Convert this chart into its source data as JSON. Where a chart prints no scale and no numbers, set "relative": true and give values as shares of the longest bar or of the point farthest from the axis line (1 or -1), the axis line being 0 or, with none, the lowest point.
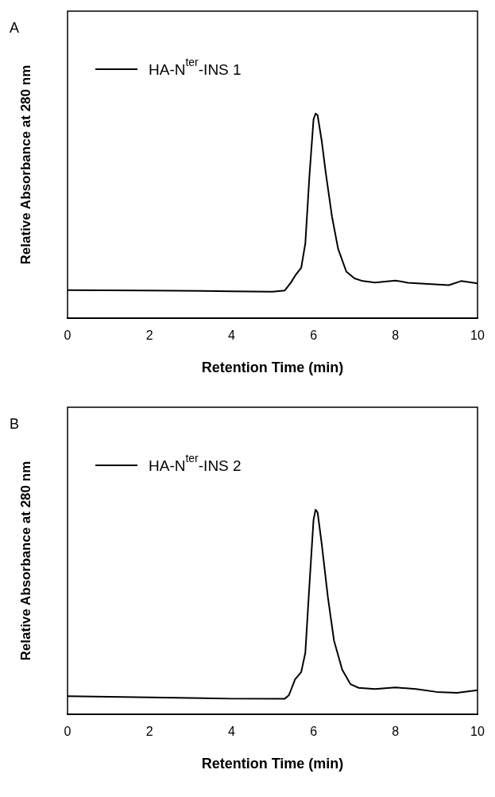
{
  "chart_data": [
    {
      "type": "line",
      "title": "A",
      "xlabel": "Retention Time (min)",
      "ylabel": "Relative Absorbance at 280 nm",
      "relative": true,
      "grid": false,
      "legend": "top left",
      "xlim": [
        0,
        10
      ],
      "xticks": [
        0,
        2,
        4,
        6,
        8,
        10
      ],
      "x": [
        0,
        2,
        4,
        5,
        5.3,
        5.45,
        5.55,
        5.7,
        5.8,
        5.9,
        6.0,
        6.05,
        6.1,
        6.2,
        6.3,
        6.45,
        6.6,
        6.8,
        7.0,
        7.2,
        7.5,
        8.0,
        8.3,
        8.8,
        9.3,
        9.6,
        10
      ],
      "series": [
        {
          "name": "HA-N$^{ter}$-INS 1",
          "color": "#000000",
          "values": [
            0.138,
            0.136,
            0.132,
            0.13,
            0.136,
            0.175,
            0.208,
            0.247,
            0.366,
            0.695,
            0.971,
            1,
            0.991,
            0.866,
            0.708,
            0.497,
            0.339,
            0.228,
            0.195,
            0.182,
            0.175,
            0.184,
            0.174,
            0.168,
            0.162,
            0.182,
            0.171
          ]
        }
      ]
    },
    {
      "type": "line",
      "title": "B",
      "xlabel": "Retention Time (min)",
      "ylabel": "Relative Absorbance at 280 nm",
      "relative": true,
      "grid": false,
      "legend": "top left",
      "xlim": [
        0,
        10
      ],
      "xticks": [
        0,
        2,
        4,
        6,
        8,
        10
      ],
      "x": [
        0,
        2,
        4,
        5.3,
        5.4,
        5.55,
        5.7,
        5.8,
        5.9,
        6.0,
        6.05,
        6.1,
        6.2,
        6.35,
        6.5,
        6.7,
        6.9,
        7.1,
        7.5,
        8.0,
        8.5,
        9.0,
        9.5,
        10
      ],
      "series": [
        {
          "name": "HA-N$^{ter}$-INS 2",
          "color": "#000000",
          "values": [
            0.089,
            0.083,
            0.077,
            0.077,
            0.094,
            0.171,
            0.207,
            0.301,
            0.632,
            0.95,
            1,
            0.986,
            0.832,
            0.573,
            0.36,
            0.218,
            0.148,
            0.13,
            0.124,
            0.132,
            0.124,
            0.11,
            0.106,
            0.118
          ]
        }
      ]
    }
  ]
}
